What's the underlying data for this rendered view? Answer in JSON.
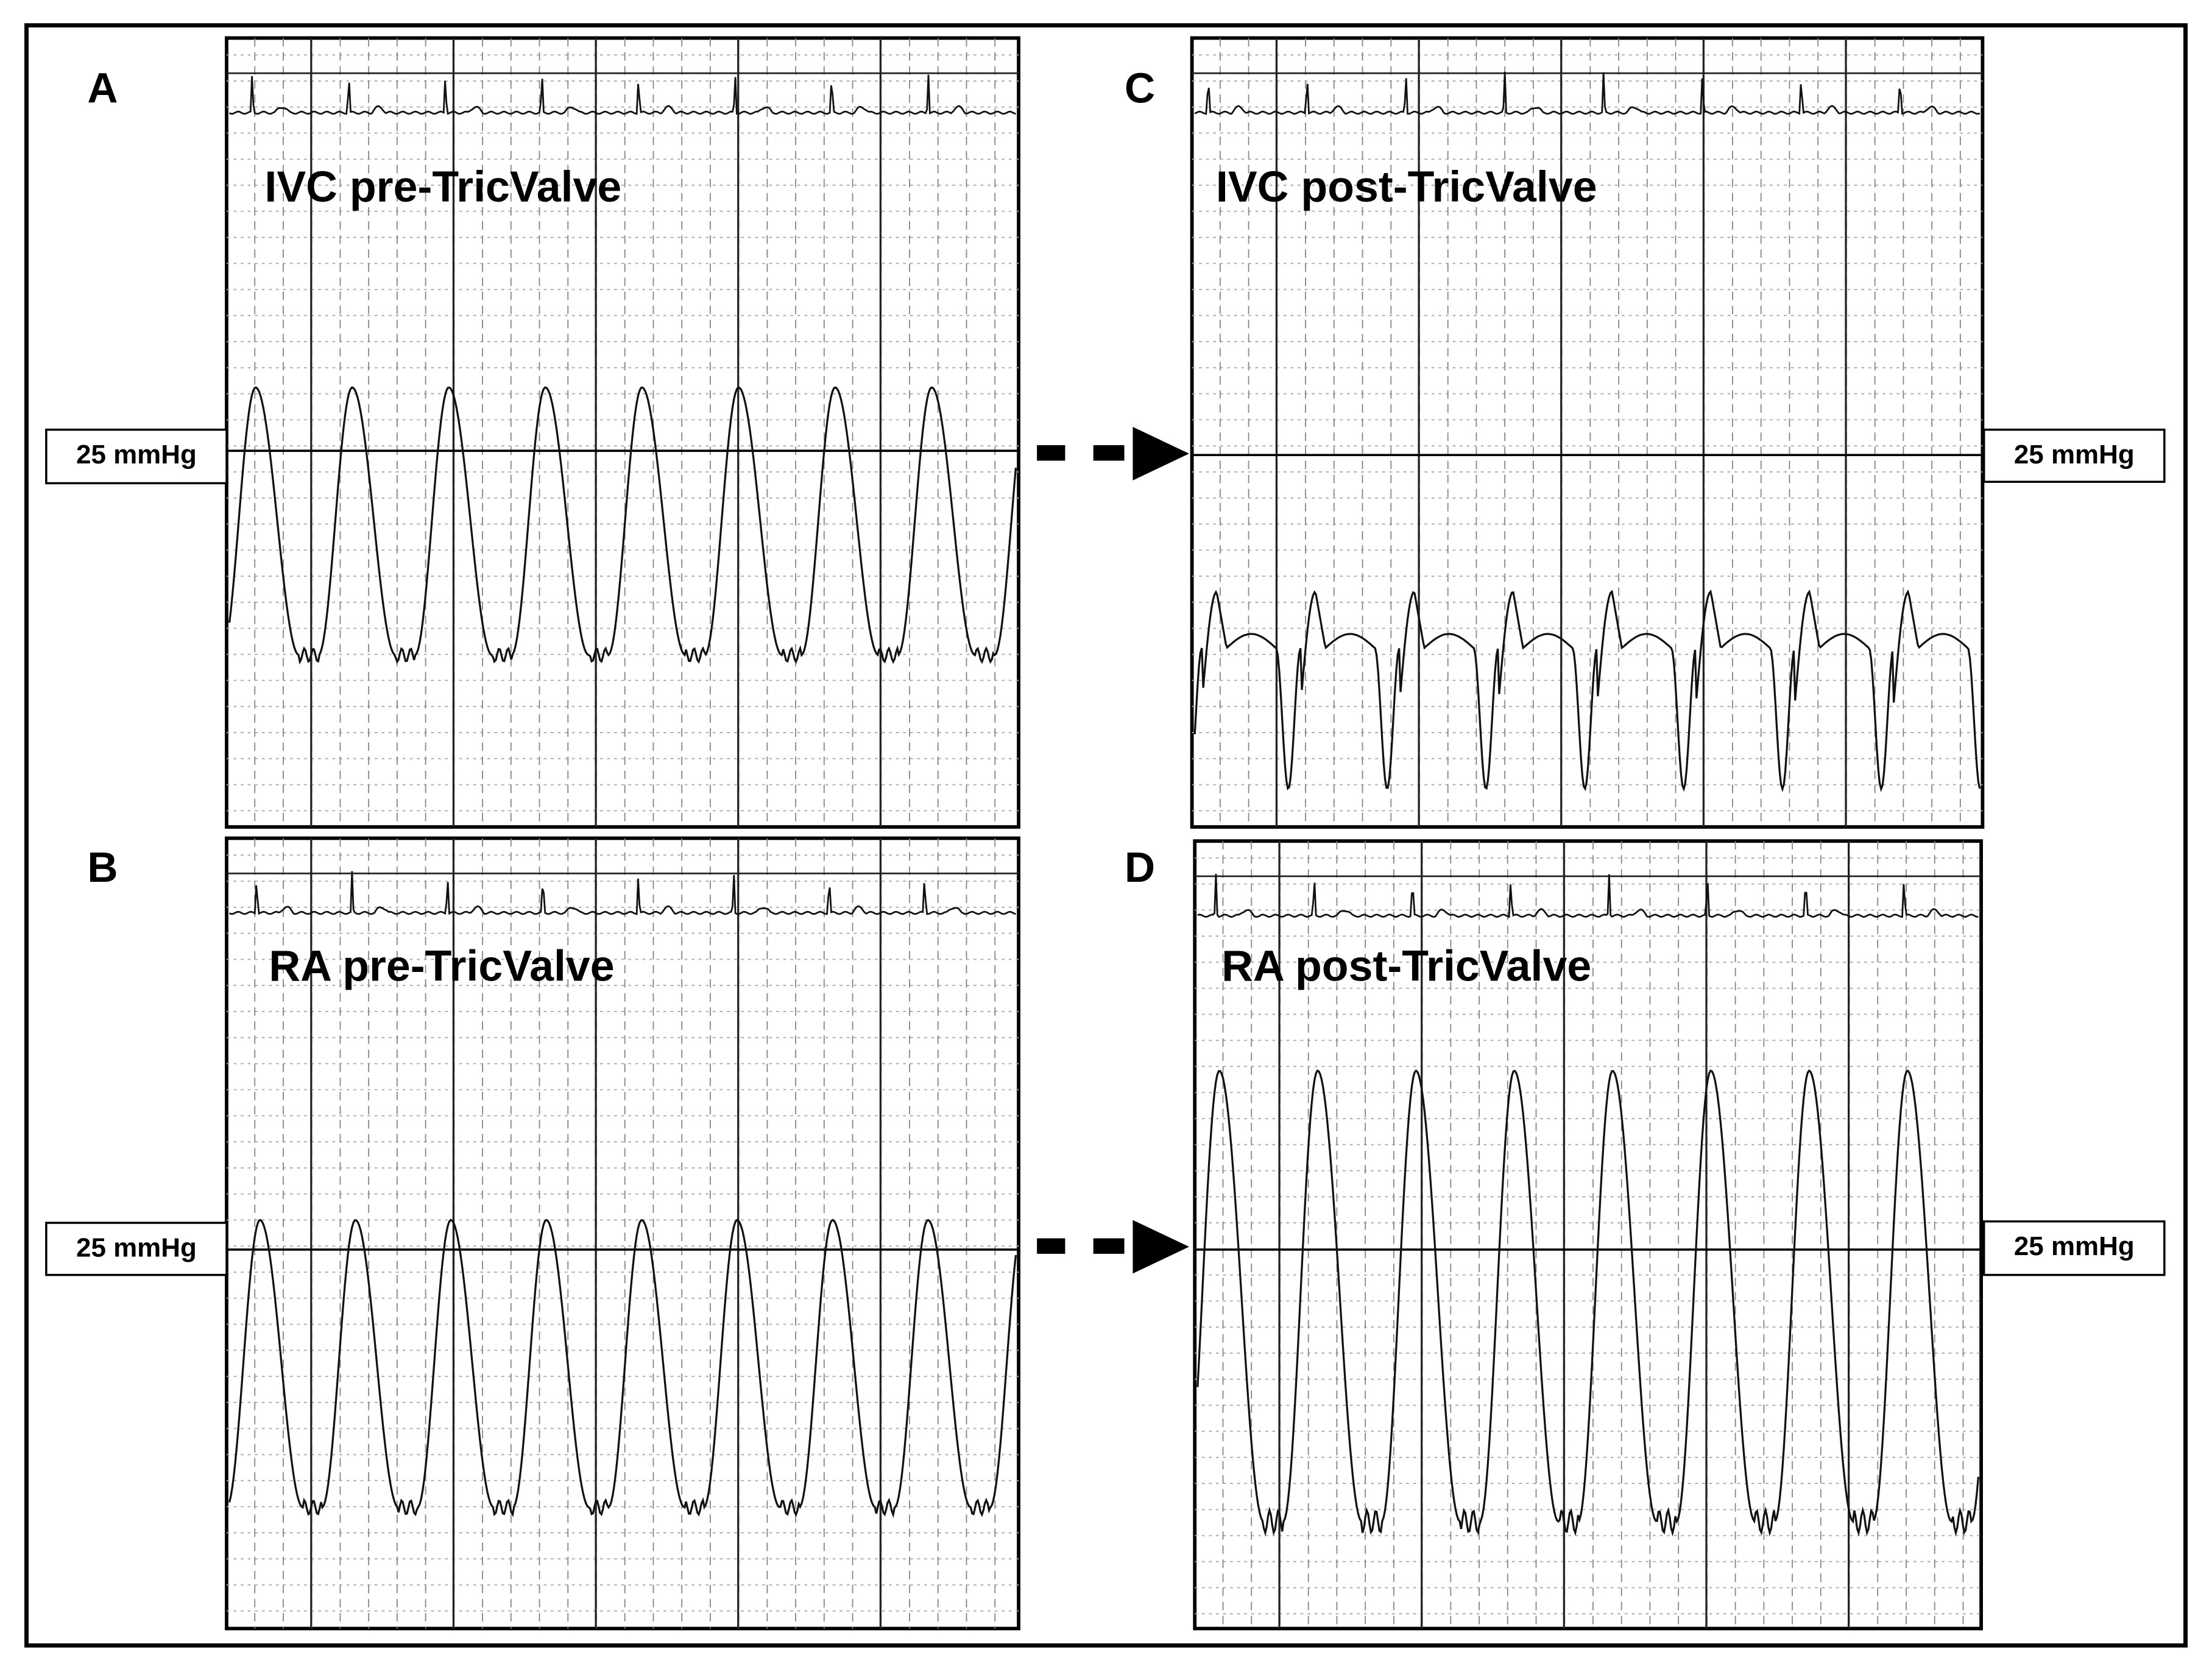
{
  "panels": [
    {
      "letter": "A",
      "title": "IVC pre-TricValve",
      "scale_label": "25 mmHg"
    },
    {
      "letter": "B",
      "title": "RA pre-TricValve",
      "scale_label": "25 mmHg"
    },
    {
      "letter": "C",
      "title": "IVC post-TricValve",
      "scale_label": "25 mmHg"
    },
    {
      "letter": "D",
      "title": "RA post-TricValve",
      "scale_label": "25 mmHg"
    }
  ]
}
